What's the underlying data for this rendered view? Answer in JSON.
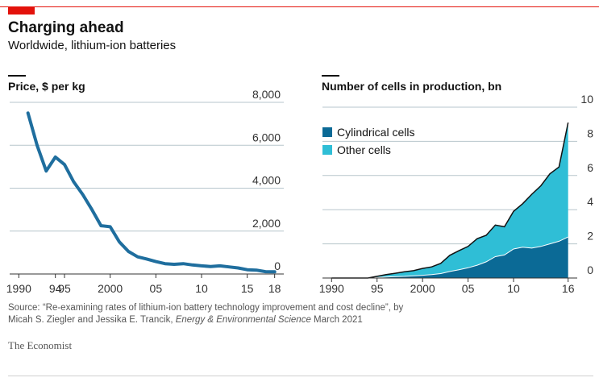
{
  "header": {
    "title": "Charging ahead",
    "subtitle": "Worldwide, lithium-ion batteries"
  },
  "colors": {
    "accent": "#e3120b",
    "price_line": "#1f6e9e",
    "cylindrical": "#0b6a96",
    "other": "#2fbed6",
    "grid": "#b7c6cc"
  },
  "chart_data": [
    {
      "type": "line",
      "title": "Price, $ per kg",
      "xlabel": "",
      "ylabel": "",
      "xlim": [
        1989,
        2019
      ],
      "ylim": [
        0,
        8000
      ],
      "x_tick_values": [
        1990,
        1994,
        1995,
        2000,
        2005,
        2010,
        2015,
        2018
      ],
      "x_tick_labels": [
        "1990",
        "94",
        "95",
        "2000",
        "05",
        "10",
        "15",
        "18"
      ],
      "y_tick_values": [
        0,
        2000,
        4000,
        6000,
        8000
      ],
      "y_tick_labels": [
        "0",
        "2,000",
        "4,000",
        "6,000",
        "8,000"
      ],
      "grid": true,
      "series": [
        {
          "x": [
            1991,
            1992,
            1993,
            1994,
            1995,
            1996,
            1997,
            1998,
            1999,
            2000,
            2001,
            2002,
            2003,
            2004,
            2005,
            2006,
            2007,
            2008,
            2009,
            2010,
            2011,
            2012,
            2013,
            2014,
            2015,
            2016,
            2017,
            2018
          ],
          "y": [
            7500,
            6000,
            4800,
            5450,
            5100,
            4300,
            3700,
            3000,
            2250,
            2200,
            1500,
            1050,
            800,
            700,
            580,
            480,
            450,
            480,
            420,
            380,
            350,
            380,
            330,
            280,
            200,
            180,
            110,
            100
          ]
        }
      ]
    },
    {
      "type": "area",
      "title": "Number of cells in production, bn",
      "xlabel": "",
      "ylabel": "",
      "xlim": [
        1989,
        2017
      ],
      "ylim": [
        0,
        10
      ],
      "x_tick_values": [
        1990,
        1995,
        2000,
        2005,
        2010,
        2016
      ],
      "x_tick_labels": [
        "1990",
        "95",
        "2000",
        "05",
        "10",
        "16"
      ],
      "y_tick_values": [
        0,
        2,
        4,
        6,
        8,
        10
      ],
      "y_tick_labels": [
        "0",
        "2",
        "4",
        "6",
        "8",
        "10"
      ],
      "grid": true,
      "stacked": true,
      "legend": "top-left",
      "x": [
        1990,
        1991,
        1992,
        1993,
        1994,
        1995,
        1996,
        1997,
        1998,
        1999,
        2000,
        2001,
        2002,
        2003,
        2004,
        2005,
        2006,
        2007,
        2008,
        2009,
        2010,
        2011,
        2012,
        2013,
        2014,
        2015,
        2016
      ],
      "series": [
        {
          "name": "Cylindrical cells",
          "values": [
            0,
            0,
            0,
            0,
            0,
            0.03,
            0.06,
            0.08,
            0.1,
            0.13,
            0.16,
            0.2,
            0.26,
            0.38,
            0.48,
            0.6,
            0.75,
            0.95,
            1.25,
            1.35,
            1.7,
            1.8,
            1.75,
            1.85,
            2.0,
            2.15,
            2.4
          ]
        },
        {
          "name": "Other cells",
          "values": [
            0,
            0,
            0,
            0,
            0,
            0.07,
            0.14,
            0.2,
            0.27,
            0.3,
            0.4,
            0.45,
            0.6,
            0.95,
            1.12,
            1.25,
            1.55,
            1.55,
            1.85,
            1.65,
            2.2,
            2.55,
            3.15,
            3.55,
            4.1,
            4.35,
            6.7
          ]
        }
      ]
    }
  ],
  "source": {
    "prefix": "Source: “Re-examining rates of lithium-ion battery technology improvement and cost decline”, by",
    "authors": "Micah S. Ziegler and Jessika E. Trancik, ",
    "journal": "Energy & Environmental Science",
    "date": " March 2021"
  },
  "brand": "The Economist"
}
